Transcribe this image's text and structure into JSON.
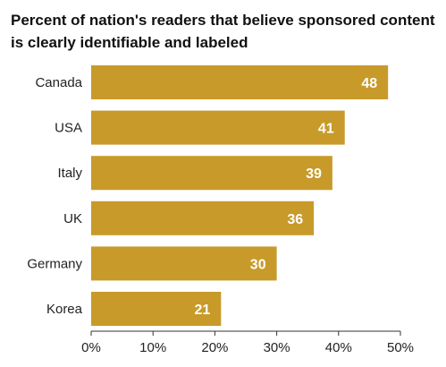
{
  "title": "Percent of nation's readers that believe sponsored content is clearly identifiable and labeled",
  "colors": {
    "bar": "#c89a2a",
    "axis": "#333333",
    "gridline": "#d9d9d9"
  },
  "chart_data": {
    "type": "bar",
    "orientation": "horizontal",
    "title": "Percent of nation's readers that believe sponsored content is clearly identifiable and labeled",
    "xlabel": "",
    "ylabel": "",
    "categories": [
      "Canada",
      "USA",
      "Italy",
      "UK",
      "Germany",
      "Korea"
    ],
    "values": [
      48,
      41,
      39,
      36,
      30,
      21
    ],
    "data_labels": [
      "48",
      "41",
      "39",
      "36",
      "30",
      "21"
    ],
    "xlim": [
      0,
      50
    ],
    "x_ticks": [
      0,
      10,
      20,
      30,
      40,
      50
    ],
    "x_tick_labels": [
      "0%",
      "10%",
      "20%",
      "30%",
      "40%",
      "50%"
    ],
    "grid": false,
    "legend": "none"
  }
}
